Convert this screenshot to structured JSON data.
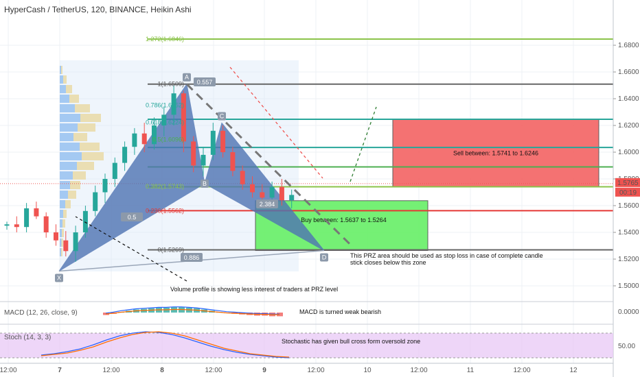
{
  "header": {
    "title": "HyperCash / TetherUS, 120, BINANCE, Heikin Ashi"
  },
  "colors": {
    "up": "#26a69a",
    "down": "#ef5350",
    "pattern": "#4f74b3",
    "sell_zone": "#f46b6b",
    "buy_zone": "#6ef06e",
    "grid": "#eef1f4",
    "stoch_bg": "#e8c8f5"
  },
  "chart_data": [
    {
      "type": "candlestick",
      "title": "HyperCash / TetherUS, 120, BINANCE, Heikin Ashi",
      "ylim": [
        1.49,
        1.69
      ],
      "y_ticks": [
        "1.6800",
        "1.6600",
        "1.6400",
        "1.6200",
        "1.6000",
        "1.5800",
        "1.5600",
        "1.5400",
        "1.5200",
        "1.5000"
      ],
      "x_ticks": [
        "12:00",
        "7",
        "12:00",
        "8",
        "12:00",
        "9",
        "12:00",
        "10",
        "12:00",
        "11",
        "12:00",
        "12"
      ],
      "last_price": "1.5765",
      "countdown": "00:19",
      "candles": [
        [
          1.545,
          1.548,
          1.542,
          1.546
        ],
        [
          1.546,
          1.552,
          1.54,
          1.544
        ],
        [
          1.544,
          1.562,
          1.54,
          1.558
        ],
        [
          1.558,
          1.563,
          1.55,
          1.552
        ],
        [
          1.552,
          1.555,
          1.536,
          1.54
        ],
        [
          1.54,
          1.546,
          1.53,
          1.534
        ],
        [
          1.534,
          1.541,
          1.522,
          1.526
        ],
        [
          1.526,
          1.545,
          1.518,
          1.54
        ],
        [
          1.54,
          1.56,
          1.536,
          1.556
        ],
        [
          1.556,
          1.575,
          1.552,
          1.57
        ],
        [
          1.57,
          1.584,
          1.562,
          1.58
        ],
        [
          1.58,
          1.596,
          1.574,
          1.592
        ],
        [
          1.592,
          1.608,
          1.586,
          1.604
        ],
        [
          1.604,
          1.618,
          1.598,
          1.614
        ],
        [
          1.614,
          1.622,
          1.6,
          1.606
        ],
        [
          1.606,
          1.626,
          1.602,
          1.62
        ],
        [
          1.62,
          1.634,
          1.612,
          1.628
        ],
        [
          1.628,
          1.65,
          1.62,
          1.644
        ],
        [
          1.644,
          1.646,
          1.6,
          1.608
        ],
        [
          1.608,
          1.612,
          1.585,
          1.59
        ],
        [
          1.59,
          1.604,
          1.582,
          1.598
        ],
        [
          1.598,
          1.622,
          1.594,
          1.616
        ],
        [
          1.616,
          1.62,
          1.596,
          1.6
        ],
        [
          1.6,
          1.604,
          1.582,
          1.586
        ],
        [
          1.586,
          1.59,
          1.572,
          1.576
        ],
        [
          1.576,
          1.582,
          1.566,
          1.57
        ],
        [
          1.57,
          1.576,
          1.56,
          1.566
        ],
        [
          1.566,
          1.578,
          1.562,
          1.574
        ],
        [
          1.574,
          1.58,
          1.56,
          1.564
        ],
        [
          1.564,
          1.572,
          1.558,
          1.568
        ]
      ],
      "fib_levels": [
        {
          "label": "1(1.6509)",
          "value": 1.6509
        },
        {
          "label": "0.786(1.6352)",
          "value": 1.6352
        },
        {
          "label": "0.618(1.6224)",
          "value": 1.6224
        },
        {
          "label": "0.5(1.6096)",
          "value": 1.6096
        },
        {
          "label": "0.382(1.5743)",
          "value": 1.5743
        },
        {
          "label": "0.236(1.5562)",
          "value": 1.5562
        },
        {
          "label": "0(1.5269)",
          "value": 1.5269
        },
        {
          "label": "1.272(1.6846)",
          "value": 1.6846
        }
      ],
      "horizontal_lines": [
        1.6846,
        1.6509,
        1.6246,
        1.6035,
        1.589,
        1.5741,
        1.5562,
        1.5269
      ],
      "pattern_points": [
        {
          "label": "X",
          "value": 1.511
        },
        {
          "label": "A",
          "value": 1.6509
        },
        {
          "label": "B",
          "value": 1.5765
        },
        {
          "label": "C",
          "value": 1.6218
        },
        {
          "label": "D",
          "value": 1.5264
        }
      ],
      "ratios": [
        "0.557",
        "0.5",
        "2.384",
        "0.886"
      ],
      "zones": [
        {
          "label": "Sell between: 1.5741 to 1.6246",
          "low": 1.5741,
          "high": 1.6246
        },
        {
          "label": "Buy between: 1.5637 to 1.5264",
          "low": 1.5264,
          "high": 1.5637
        }
      ],
      "annotations": [
        "This PRZ area should be used as stop loss in case of complete candle",
        "stick closes below this zone",
        "Volume profile is showing less interest of traders at PRZ level"
      ]
    },
    {
      "type": "bar",
      "title": "MACD (12, 26, close, 9)",
      "y_ticks": [
        "0.0000"
      ],
      "annotation": "MACD is turned weak bearish",
      "values": [
        -0.004,
        -0.002,
        0.001,
        0.003,
        0.005,
        0.006,
        0.007,
        0.008,
        0.008,
        0.009,
        0.009,
        0.008,
        0.007,
        0.005,
        0.003,
        0.001,
        -0.001,
        -0.002,
        -0.003,
        -0.004,
        -0.005,
        -0.005,
        -0.006,
        -0.006
      ]
    },
    {
      "type": "line",
      "title": "Stoch (14, 3, 3)",
      "y_ticks": [
        "50.00"
      ],
      "annotation": "Stochastic has given bull cross form oversold zone",
      "series": [
        {
          "values": [
            20,
            24,
            30,
            38,
            50,
            64,
            76,
            84,
            88,
            86,
            80,
            70,
            58,
            46,
            36,
            28,
            22,
            18,
            14,
            12
          ]
        },
        {
          "values": [
            18,
            22,
            26,
            34,
            44,
            58,
            70,
            80,
            86,
            88,
            84,
            76,
            64,
            52,
            40,
            32,
            24,
            20,
            16,
            14
          ]
        }
      ]
    }
  ]
}
